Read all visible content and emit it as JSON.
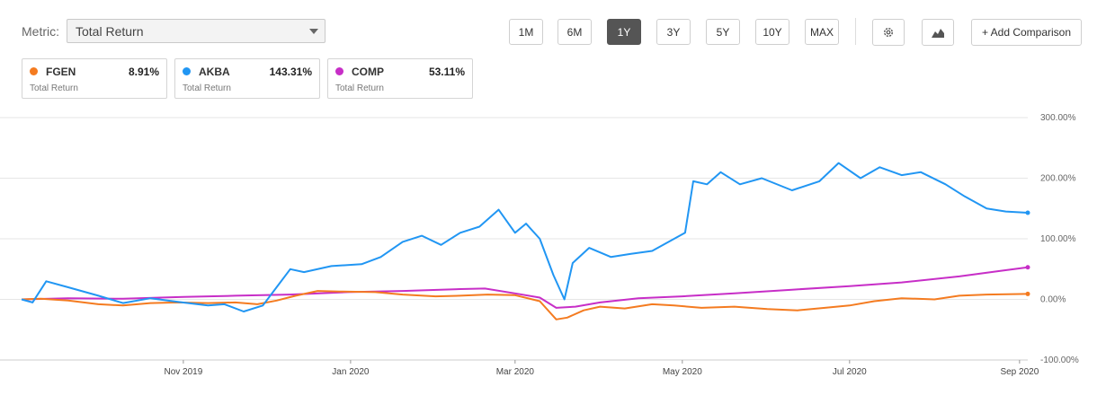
{
  "metric": {
    "label": "Metric:",
    "value": "Total Return"
  },
  "ranges": [
    "1M",
    "6M",
    "1Y",
    "3Y",
    "5Y",
    "10Y",
    "MAX"
  ],
  "active_range": "1Y",
  "icons": {
    "settings": "gear-icon",
    "chart_type": "mountain-chart-icon"
  },
  "add_comparison": "+ Add Comparison",
  "legend": [
    {
      "symbol": "FGEN",
      "value": "8.91%",
      "sub": "Total Return",
      "color": "#f47b20"
    },
    {
      "symbol": "AKBA",
      "value": "143.31%",
      "sub": "Total Return",
      "color": "#2196f3"
    },
    {
      "symbol": "COMP",
      "value": "53.11%",
      "sub": "Total Return",
      "color": "#c72ec7"
    }
  ],
  "chart_data": {
    "type": "line",
    "ylim": [
      -100,
      300
    ],
    "yticks": [
      300,
      200,
      100,
      0,
      -100
    ],
    "ytick_labels": [
      "300.00%",
      "200.00%",
      "100.00%",
      "0.00%",
      "-100.00%"
    ],
    "xlim": [
      "2019-09-03",
      "2020-09-04"
    ],
    "xticks": [
      {
        "label": "Nov 2019",
        "date": "2019-11-01"
      },
      {
        "label": "Jan 2020",
        "date": "2020-01-01"
      },
      {
        "label": "Mar 2020",
        "date": "2020-03-01"
      },
      {
        "label": "May 2020",
        "date": "2020-05-01"
      },
      {
        "label": "Jul 2020",
        "date": "2020-07-01"
      },
      {
        "label": "Sep 2020",
        "date": "2020-09-01"
      }
    ],
    "grid": true,
    "series": [
      {
        "name": "FGEN",
        "color": "#f47b20",
        "points": [
          [
            "2019-09-03",
            0
          ],
          [
            "2019-09-10",
            1
          ],
          [
            "2019-09-20",
            -2
          ],
          [
            "2019-10-01",
            -8
          ],
          [
            "2019-10-10",
            -10
          ],
          [
            "2019-10-20",
            -6
          ],
          [
            "2019-10-30",
            -5
          ],
          [
            "2019-11-10",
            -6
          ],
          [
            "2019-11-20",
            -5
          ],
          [
            "2019-11-28",
            -8
          ],
          [
            "2019-12-05",
            -2
          ],
          [
            "2019-12-12",
            6
          ],
          [
            "2019-12-20",
            14
          ],
          [
            "2019-12-28",
            13
          ],
          [
            "2020-01-10",
            12
          ],
          [
            "2020-01-20",
            8
          ],
          [
            "2020-02-01",
            5
          ],
          [
            "2020-02-10",
            6
          ],
          [
            "2020-02-20",
            8
          ],
          [
            "2020-03-01",
            7
          ],
          [
            "2020-03-10",
            -3
          ],
          [
            "2020-03-16",
            -33
          ],
          [
            "2020-03-20",
            -30
          ],
          [
            "2020-03-26",
            -18
          ],
          [
            "2020-04-01",
            -12
          ],
          [
            "2020-04-10",
            -15
          ],
          [
            "2020-04-20",
            -8
          ],
          [
            "2020-04-28",
            -10
          ],
          [
            "2020-05-08",
            -14
          ],
          [
            "2020-05-20",
            -12
          ],
          [
            "2020-06-01",
            -16
          ],
          [
            "2020-06-12",
            -18
          ],
          [
            "2020-06-22",
            -14
          ],
          [
            "2020-07-01",
            -10
          ],
          [
            "2020-07-10",
            -3
          ],
          [
            "2020-07-20",
            2
          ],
          [
            "2020-08-01",
            0
          ],
          [
            "2020-08-10",
            6
          ],
          [
            "2020-08-20",
            8
          ],
          [
            "2020-09-04",
            9
          ]
        ]
      },
      {
        "name": "AKBA",
        "color": "#2196f3",
        "points": [
          [
            "2019-09-03",
            0
          ],
          [
            "2019-09-07",
            -5
          ],
          [
            "2019-09-12",
            30
          ],
          [
            "2019-09-20",
            20
          ],
          [
            "2019-10-01",
            6
          ],
          [
            "2019-10-10",
            -6
          ],
          [
            "2019-10-20",
            2
          ],
          [
            "2019-10-30",
            -4
          ],
          [
            "2019-11-10",
            -10
          ],
          [
            "2019-11-16",
            -8
          ],
          [
            "2019-11-23",
            -20
          ],
          [
            "2019-11-30",
            -10
          ],
          [
            "2019-12-05",
            20
          ],
          [
            "2019-12-10",
            50
          ],
          [
            "2019-12-15",
            45
          ],
          [
            "2019-12-25",
            55
          ],
          [
            "2020-01-05",
            58
          ],
          [
            "2020-01-12",
            70
          ],
          [
            "2020-01-20",
            95
          ],
          [
            "2020-01-27",
            105
          ],
          [
            "2020-02-03",
            90
          ],
          [
            "2020-02-10",
            110
          ],
          [
            "2020-02-17",
            120
          ],
          [
            "2020-02-24",
            148
          ],
          [
            "2020-03-01",
            110
          ],
          [
            "2020-03-05",
            125
          ],
          [
            "2020-03-10",
            100
          ],
          [
            "2020-03-15",
            40
          ],
          [
            "2020-03-19",
            0
          ],
          [
            "2020-03-22",
            60
          ],
          [
            "2020-03-28",
            85
          ],
          [
            "2020-04-05",
            70
          ],
          [
            "2020-04-12",
            75
          ],
          [
            "2020-04-20",
            80
          ],
          [
            "2020-04-26",
            95
          ],
          [
            "2020-05-02",
            110
          ],
          [
            "2020-05-05",
            195
          ],
          [
            "2020-05-10",
            190
          ],
          [
            "2020-05-15",
            210
          ],
          [
            "2020-05-22",
            190
          ],
          [
            "2020-05-30",
            200
          ],
          [
            "2020-06-10",
            180
          ],
          [
            "2020-06-20",
            195
          ],
          [
            "2020-06-27",
            225
          ],
          [
            "2020-07-05",
            200
          ],
          [
            "2020-07-12",
            218
          ],
          [
            "2020-07-20",
            205
          ],
          [
            "2020-07-27",
            210
          ],
          [
            "2020-08-05",
            190
          ],
          [
            "2020-08-12",
            170
          ],
          [
            "2020-08-20",
            150
          ],
          [
            "2020-08-27",
            145
          ],
          [
            "2020-09-04",
            143
          ]
        ]
      },
      {
        "name": "COMP",
        "color": "#c72ec7",
        "points": [
          [
            "2019-09-03",
            0
          ],
          [
            "2019-09-20",
            2
          ],
          [
            "2019-10-10",
            1
          ],
          [
            "2019-11-01",
            4
          ],
          [
            "2019-11-20",
            6
          ],
          [
            "2019-12-10",
            8
          ],
          [
            "2019-12-31",
            12
          ],
          [
            "2020-01-20",
            14
          ],
          [
            "2020-02-10",
            17
          ],
          [
            "2020-02-19",
            18
          ],
          [
            "2020-03-01",
            10
          ],
          [
            "2020-03-10",
            3
          ],
          [
            "2020-03-16",
            -14
          ],
          [
            "2020-03-23",
            -12
          ],
          [
            "2020-04-01",
            -5
          ],
          [
            "2020-04-15",
            2
          ],
          [
            "2020-05-01",
            5
          ],
          [
            "2020-05-20",
            10
          ],
          [
            "2020-06-10",
            16
          ],
          [
            "2020-07-01",
            22
          ],
          [
            "2020-07-20",
            28
          ],
          [
            "2020-08-10",
            38
          ],
          [
            "2020-08-25",
            47
          ],
          [
            "2020-09-04",
            53
          ]
        ]
      }
    ]
  }
}
